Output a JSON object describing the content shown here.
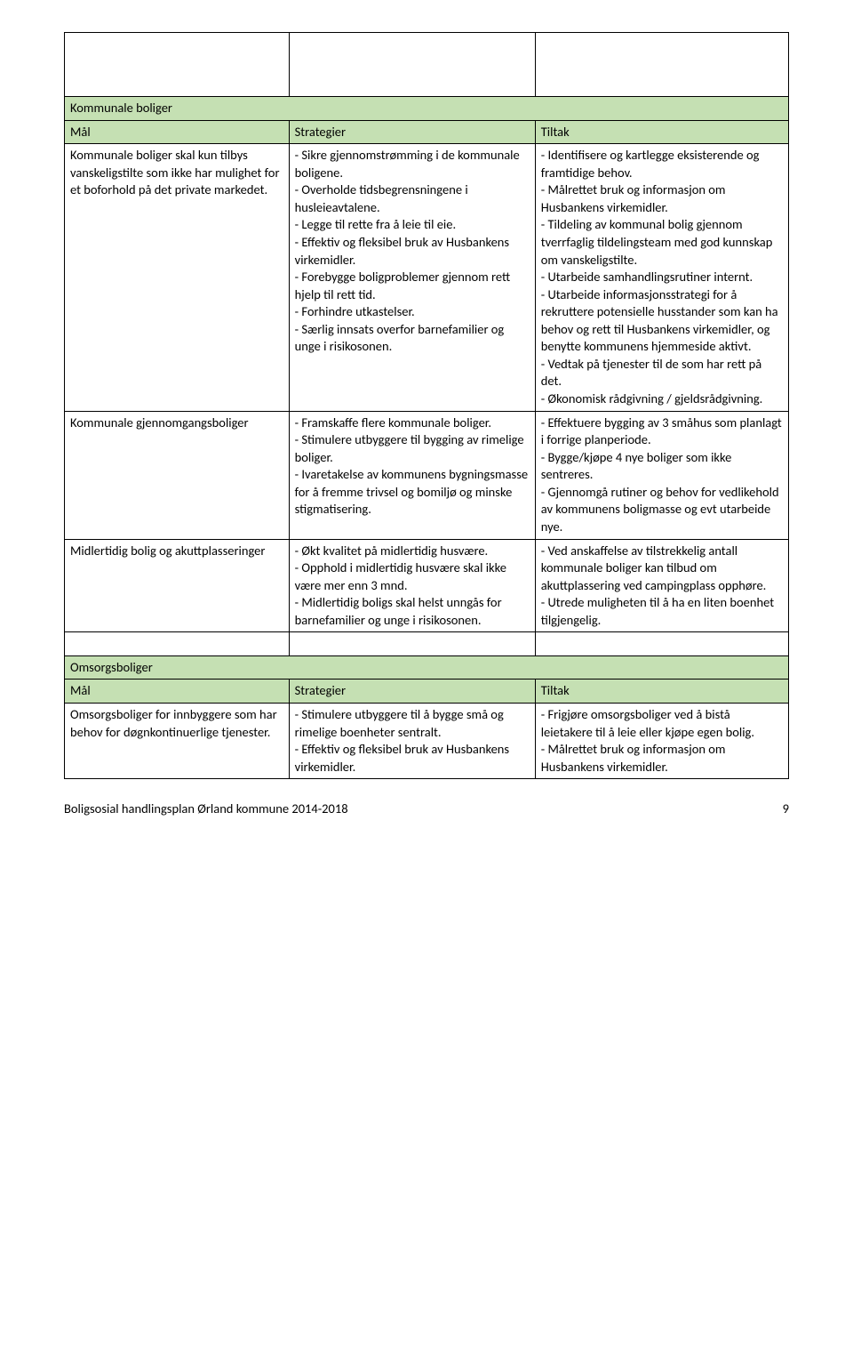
{
  "colors": {
    "header_bg": "#c5e0b3",
    "border": "#000000",
    "text": "#000000",
    "page_bg": "#ffffff"
  },
  "table": {
    "section1": {
      "title": "Kommunale boliger",
      "headers": {
        "col1": "Mål",
        "col2": "Strategier",
        "col3": "Tiltak"
      },
      "row1": {
        "col1": "Kommunale boliger skal kun tilbys vanskeligstilte som ikke har mulighet for et boforhold på det private markedet.",
        "col2": "- Sikre gjennomstrømming i de kommunale boligene.\n- Overholde tidsbegrensningene i husleieavtalene.\n- Legge til rette fra å leie til eie.\n- Effektiv og fleksibel bruk av Husbankens virkemidler.\n- Forebygge boligproblemer gjennom rett hjelp til rett tid.\n- Forhindre utkastelser.\n- Særlig innsats overfor barnefamilier og unge i risikosonen.",
        "col3": "- Identifisere og kartlegge eksisterende og framtidige behov.\n- Målrettet bruk og informasjon om Husbankens virkemidler.\n- Tildeling av kommunal bolig gjennom tverrfaglig tildelingsteam med god kunnskap om vanskeligstilte.\n- Utarbeide samhandlingsrutiner internt.\n- Utarbeide informasjonsstrategi for å rekruttere potensielle husstander som kan ha behov og rett til Husbankens virkemidler, og benytte kommunens hjemmeside aktivt.\n- Vedtak på tjenester til de som har rett på det.\n- Økonomisk rådgivning / gjeldsrådgivning."
      },
      "row2": {
        "col1": "Kommunale gjennomgangsboliger",
        "col2": "- Framskaffe flere kommunale boliger.\n- Stimulere utbyggere til bygging av rimelige boliger.\n- Ivaretakelse av kommunens bygningsmasse for å fremme trivsel og bomiljø og minske stigmatisering.",
        "col3": "- Effektuere bygging av 3 småhus som planlagt i forrige planperiode.\n- Bygge/kjøpe 4 nye boliger som ikke sentreres.\n- Gjennomgå rutiner og behov for vedlikehold av kommunens boligmasse og evt utarbeide nye."
      },
      "row3": {
        "col1": "Midlertidig bolig og akuttplasseringer",
        "col2": "- Økt kvalitet på midlertidig husvære.\n- Opphold i midlertidig husvære skal ikke være mer enn 3 mnd.\n- Midlertidig boligs skal helst unngås for barnefamilier og unge i risikosonen.",
        "col3": "- Ved anskaffelse av tilstrekkelig antall kommunale boliger kan tilbud om akuttplassering ved campingplass opphøre.\n- Utrede muligheten til å ha en liten boenhet tilgjengelig."
      }
    },
    "section2": {
      "title": "Omsorgsboliger",
      "headers": {
        "col1": "Mål",
        "col2": "Strategier",
        "col3": "Tiltak"
      },
      "row1": {
        "col1": "Omsorgsboliger for innbyggere som har behov for døgnkontinuerlige tjenester.",
        "col2": "- Stimulere utbyggere til å bygge små og rimelige boenheter sentralt.\n- Effektiv og fleksibel bruk av Husbankens virkemidler.",
        "col3": "- Frigjøre omsorgsboliger ved å bistå leietakere til å leie eller kjøpe egen bolig.\n- Målrettet bruk og informasjon om Husbankens virkemidler."
      }
    }
  },
  "footer": {
    "text": "Boligsosial handlingsplan Ørland kommune 2014-2018",
    "page": "9"
  }
}
